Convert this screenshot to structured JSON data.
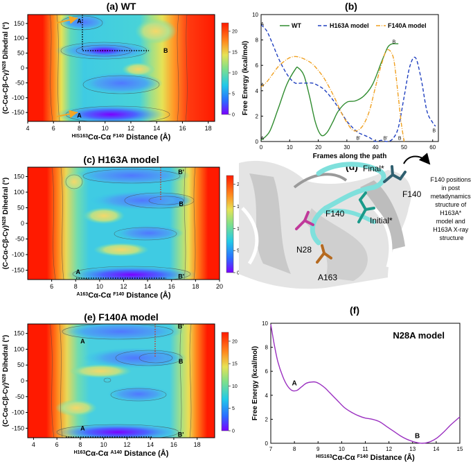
{
  "colors": {
    "wt": "#2e8b2e",
    "h163a": "#1f3fbf",
    "f140a": "#f0a020",
    "n28a": "#9a2fc0",
    "axis": "#000000",
    "annotation_arrow": "#f5a623",
    "path_dotted": "#000000"
  },
  "chart_data": [
    {
      "panel": "(a)",
      "type": "heatmap",
      "title": "WT",
      "xlabel_pre": "HIS163",
      "xlabel_mid": "Cα-Cα ",
      "xlabel_sup": "F140",
      "xlabel_post": " Distance (Å)",
      "ylabel": "(C-Cα-Cβ-Cγ)N28 Dihedral (°)",
      "xlim": [
        4,
        18.5
      ],
      "ylim": [
        -180,
        180
      ],
      "xticks": [
        4,
        6,
        8,
        10,
        12,
        14,
        16,
        18
      ],
      "yticks": [
        -150,
        -100,
        -50,
        0,
        50,
        100,
        150
      ],
      "colorbar": {
        "min": 0,
        "max": 22,
        "ticks": [
          0,
          5,
          10,
          15,
          20
        ]
      },
      "annotations": [
        {
          "label": "A",
          "x": 8.0,
          "y": 158
        },
        {
          "label": "B",
          "x": 14.7,
          "y": 58
        },
        {
          "label": "A",
          "x": 8.0,
          "y": -160
        }
      ]
    },
    {
      "panel": "(b)",
      "type": "line",
      "xlabel": "Frames along the path",
      "ylabel": "Free Energy (kcal/mol)",
      "xlim": [
        0,
        62
      ],
      "ylim": [
        0,
        10
      ],
      "xticks": [
        0,
        10,
        20,
        30,
        40,
        50,
        60
      ],
      "yticks": [
        0,
        2,
        4,
        6,
        8,
        10
      ],
      "series": [
        {
          "name": "WT",
          "x": [
            0,
            3,
            6,
            9,
            12,
            13,
            15,
            17,
            19,
            21,
            23,
            25,
            27,
            30,
            33,
            36,
            39,
            42,
            44,
            45,
            46,
            48
          ],
          "y": [
            0.1,
            0.8,
            2.6,
            4.5,
            5.7,
            5.8,
            5.2,
            3.5,
            1.5,
            0.5,
            0.7,
            1.5,
            2.4,
            3.1,
            3.2,
            3.6,
            4.5,
            6.2,
            7.3,
            7.6,
            7.7,
            7.7
          ]
        },
        {
          "name": "H163A model",
          "x": [
            0,
            2,
            4,
            6,
            8,
            10,
            12,
            14,
            16,
            18,
            20,
            22,
            24,
            26,
            28,
            30,
            32,
            34,
            36,
            38,
            40,
            42,
            44,
            46,
            48,
            50,
            52,
            54,
            56,
            58,
            60,
            61
          ],
          "y": [
            9.2,
            8.7,
            7.7,
            6.6,
            5.7,
            5.0,
            4.6,
            4.6,
            4.6,
            4.6,
            4.4,
            4.1,
            3.6,
            3.0,
            2.3,
            1.6,
            1.1,
            0.7,
            0.5,
            0.3,
            0.0,
            0.1,
            0.0,
            0.2,
            1.1,
            3.5,
            5.9,
            6.6,
            4.9,
            2.4,
            1.5,
            1.2
          ]
        },
        {
          "name": "F140A model",
          "x": [
            0,
            2,
            4,
            6,
            8,
            10,
            12,
            14,
            16,
            18,
            20,
            22,
            24,
            26,
            28,
            30,
            32,
            34,
            36,
            38,
            40,
            42,
            44,
            46,
            47,
            48,
            49,
            50
          ],
          "y": [
            4.3,
            4.7,
            5.3,
            5.9,
            6.3,
            6.6,
            6.7,
            6.6,
            6.4,
            6.1,
            5.6,
            5.0,
            4.2,
            3.3,
            2.3,
            1.5,
            0.9,
            0.9,
            1.4,
            2.5,
            4.3,
            6.0,
            7.2,
            6.8,
            5.5,
            3.5,
            1.5,
            0.0
          ]
        }
      ],
      "annotations": [
        {
          "label": "A",
          "x": 0.4,
          "y": 9.3
        },
        {
          "label": "A",
          "x": 0.4,
          "y": 4.5
        },
        {
          "label": "A",
          "x": 0.4,
          "y": 0.3
        },
        {
          "label": "B'",
          "x": 34,
          "y": 0.3
        },
        {
          "label": "B'",
          "x": 43.5,
          "y": 0.3
        },
        {
          "label": "B",
          "x": 48.5,
          "y": 0.3
        },
        {
          "label": "B",
          "x": 46.5,
          "y": 7.9
        },
        {
          "label": "B",
          "x": 60.5,
          "y": 0.9
        }
      ]
    },
    {
      "panel": "(c)",
      "type": "heatmap",
      "title": "H163A model",
      "xlabel_pre": "A163",
      "xlabel_mid": "Cα-Cα ",
      "xlabel_sup": "F140",
      "xlabel_post": " Distance (Å)",
      "ylabel": "(C-Cα-Cβ-Cγ)N28 Dihedral (°)",
      "xlim": [
        4,
        20
      ],
      "ylim": [
        -180,
        180
      ],
      "xticks": [
        6,
        8,
        10,
        12,
        14,
        16,
        18,
        20
      ],
      "yticks": [
        -150,
        -100,
        -50,
        0,
        50,
        100,
        150
      ],
      "colorbar": {
        "min": 0,
        "max": 22,
        "ticks": [
          0,
          5,
          10,
          15,
          20
        ]
      },
      "annotations": [
        {
          "label": "B'",
          "x": 16.8,
          "y": 165
        },
        {
          "label": "B",
          "x": 16.8,
          "y": 62
        },
        {
          "label": "A",
          "x": 8.2,
          "y": -155
        },
        {
          "label": "B'",
          "x": 16.8,
          "y": -170
        }
      ]
    },
    {
      "panel": "(e)",
      "type": "heatmap",
      "title": "F140A model",
      "xlabel_pre": "H163",
      "xlabel_mid": "Cα-Cα ",
      "xlabel_sup": "A140",
      "xlabel_post": " Distance (Å)",
      "ylabel": "(C-Cα-Cβ-Cγ)N28 Dihedral (°)",
      "xlim": [
        3.5,
        19.5
      ],
      "ylim": [
        -180,
        180
      ],
      "xticks": [
        4,
        6,
        8,
        10,
        12,
        14,
        16,
        18
      ],
      "yticks": [
        -150,
        -100,
        -50,
        0,
        50,
        100,
        150
      ],
      "colorbar": {
        "min": 0,
        "max": 22,
        "ticks": [
          0,
          5,
          10,
          15,
          20
        ]
      },
      "annotations": [
        {
          "label": "B'",
          "x": 16.6,
          "y": 172
        },
        {
          "label": "A",
          "x": 8.2,
          "y": 125
        },
        {
          "label": "B",
          "x": 16.6,
          "y": 62
        },
        {
          "label": "A",
          "x": 8.2,
          "y": -150
        },
        {
          "label": "B'",
          "x": 16.6,
          "y": -170
        }
      ]
    },
    {
      "panel": "(f)",
      "type": "line",
      "title": "N28A model",
      "xlabel_pre": "HIS163",
      "xlabel_mid": "Cα-Cα ",
      "xlabel_sup": "F140",
      "xlabel_post": " Distance (Å)",
      "ylabel": "Free Energy (kcal/mol)",
      "xlim": [
        7,
        15
      ],
      "ylim": [
        0,
        10
      ],
      "xticks": [
        7,
        8,
        9,
        10,
        11,
        12,
        13,
        14,
        15
      ],
      "yticks": [
        0,
        2,
        4,
        6,
        8,
        10
      ],
      "series": [
        {
          "name": "N28A model",
          "x": [
            7.0,
            7.15,
            7.3,
            7.5,
            7.7,
            7.9,
            8.1,
            8.3,
            8.5,
            8.7,
            8.9,
            9.1,
            9.3,
            9.5,
            9.8,
            10.1,
            10.4,
            10.7,
            11.0,
            11.3,
            11.6,
            11.9,
            12.2,
            12.5,
            12.8,
            13.1,
            13.4,
            13.7,
            14.0,
            14.3,
            14.6,
            15.0
          ],
          "y": [
            9.9,
            8.2,
            6.8,
            5.6,
            4.8,
            4.4,
            4.4,
            4.7,
            5.0,
            5.1,
            5.1,
            4.9,
            4.6,
            4.2,
            3.6,
            3.0,
            2.6,
            2.3,
            2.1,
            2.0,
            1.8,
            1.4,
            1.0,
            0.6,
            0.3,
            0.1,
            0.0,
            0.1,
            0.4,
            0.9,
            1.5,
            2.2
          ]
        }
      ],
      "annotations": [
        {
          "label": "A",
          "x": 8.0,
          "y": 5.0
        },
        {
          "label": "B",
          "x": 13.2,
          "y": 0.6
        }
      ]
    }
  ],
  "panel_d": {
    "label": "(d)",
    "labels": {
      "final": "Final*",
      "f140_top": "F140",
      "f140_mid": "F140",
      "initial": "Initial*",
      "n28": "N28",
      "a163": "A163"
    },
    "note_lines": [
      "F140 positions",
      "in post",
      "metadynamics",
      "structure of",
      "H163A*",
      "model and",
      "H163A X-ray",
      "structure"
    ]
  }
}
